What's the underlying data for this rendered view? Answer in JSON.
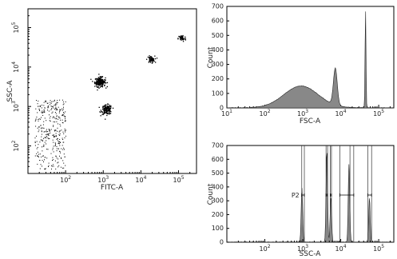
{
  "chart_data": [
    {
      "type": "scatter",
      "panel": "dot-plot",
      "xlabel": "FITC-A",
      "ylabel": "SSC-A",
      "x_scale": "log",
      "y_scale": "log",
      "xlim": [
        10,
        300000
      ],
      "ylim": [
        20,
        300000
      ],
      "x_ticks": [
        {
          "value": 100,
          "base": "10",
          "exp": "2"
        },
        {
          "value": 1000,
          "base": "10",
          "exp": "3"
        },
        {
          "value": 10000,
          "base": "10",
          "exp": "4"
        },
        {
          "value": 100000,
          "base": "10",
          "exp": "5"
        }
      ],
      "y_ticks": [
        {
          "value": 100,
          "base": "10",
          "exp": "2"
        },
        {
          "value": 1000,
          "base": "10",
          "exp": "3"
        },
        {
          "value": 10000,
          "base": "10",
          "exp": "4"
        },
        {
          "value": 100000,
          "base": "10",
          "exp": "5"
        }
      ],
      "clusters": [
        {
          "x": 800,
          "y": 4300,
          "spread": 0.07,
          "count": 200
        },
        {
          "x": 1200,
          "y": 850,
          "spread": 0.07,
          "count": 150
        },
        {
          "x": 18000,
          "y": 16000,
          "spread": 0.05,
          "count": 60
        },
        {
          "x": 120000,
          "y": 55000,
          "spread": 0.05,
          "count": 50
        }
      ],
      "background_region": {
        "x_range": [
          15,
          100
        ],
        "y_range": [
          25,
          1500
        ],
        "count": 350
      }
    },
    {
      "type": "area",
      "panel": "histogram-fsc",
      "xlabel": "FSC-A",
      "ylabel": "Count",
      "x_scale": "log",
      "xlim": [
        10,
        250000
      ],
      "ylim": [
        0,
        700
      ],
      "x_ticks": [
        {
          "value": 10,
          "base": "10",
          "exp": "1"
        },
        {
          "value": 100,
          "base": "10",
          "exp": "2"
        },
        {
          "value": 1000,
          "base": "10",
          "exp": "3"
        },
        {
          "value": 10000,
          "base": "10",
          "exp": "4"
        },
        {
          "value": 100000,
          "base": "10",
          "exp": "5"
        }
      ],
      "y_ticks": [
        0,
        100,
        200,
        300,
        400,
        500,
        600,
        700
      ],
      "peaks": [
        {
          "x": 900,
          "height": 150,
          "width": 0.45
        },
        {
          "x": 7200,
          "height": 255,
          "width": 0.05
        },
        {
          "x": 45000,
          "height": 680,
          "width": 0.012
        }
      ]
    },
    {
      "type": "area",
      "panel": "histogram-ssc",
      "xlabel": "SSC-A",
      "ylabel": "Count",
      "x_scale": "log",
      "xlim": [
        10,
        250000
      ],
      "ylim": [
        0,
        700
      ],
      "x_ticks": [
        {
          "value": 100,
          "base": "10",
          "exp": "2"
        },
        {
          "value": 1000,
          "base": "10",
          "exp": "3"
        },
        {
          "value": 10000,
          "base": "10",
          "exp": "4"
        },
        {
          "value": 100000,
          "base": "10",
          "exp": "5"
        }
      ],
      "y_ticks": [
        0,
        100,
        200,
        300,
        400,
        500,
        600,
        700
      ],
      "peaks": [
        {
          "x": 950,
          "height": 390,
          "width": 0.02
        },
        {
          "x": 4300,
          "height": 665,
          "width": 0.02
        },
        {
          "x": 5500,
          "height": 330,
          "width": 0.02
        },
        {
          "x": 16500,
          "height": 565,
          "width": 0.02
        },
        {
          "x": 57000,
          "height": 320,
          "width": 0.02
        }
      ],
      "gate_lines": [
        940,
        1100,
        4100,
        4500,
        5300,
        5700,
        9500,
        17500,
        22000,
        52000,
        65000
      ],
      "gates": [
        {
          "label": "P2",
          "x1": 940,
          "x2": 1100
        },
        {
          "label": "",
          "x1": 4100,
          "x2": 4500
        },
        {
          "label": "",
          "x1": 5300,
          "x2": 5700
        },
        {
          "label": "",
          "x1": 9500,
          "x2": 22000
        },
        {
          "label": "",
          "x1": 52000,
          "x2": 65000
        }
      ]
    }
  ]
}
